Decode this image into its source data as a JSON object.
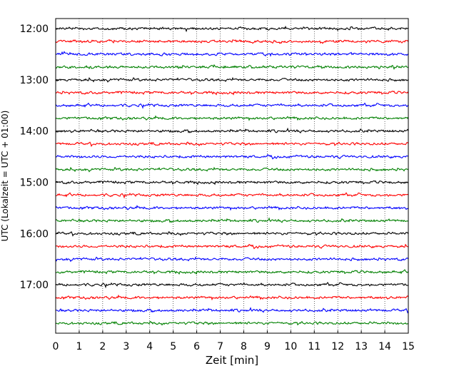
{
  "chart_data": {
    "type": "line",
    "title": "",
    "xlabel": "Zeit  [min]",
    "ylabel": "UTC (Lokalzeit = UTC + 01:00)",
    "xlim": [
      0,
      15
    ],
    "x_ticks": [
      0,
      1,
      2,
      3,
      4,
      5,
      6,
      7,
      8,
      9,
      10,
      11,
      12,
      13,
      14,
      15
    ],
    "y_tick_labels": [
      "12:00",
      "13:00",
      "14:00",
      "15:00",
      "16:00",
      "17:00"
    ],
    "y_range": [
      "11:45",
      "17:45"
    ],
    "grid": "vertical dotted lines at each minute",
    "legend": "none",
    "colors": [
      "#000000",
      "#ff0000",
      "#0000ff",
      "#008000"
    ],
    "traces": [
      {
        "start": "12:00",
        "color": "#000000"
      },
      {
        "start": "12:15",
        "color": "#ff0000"
      },
      {
        "start": "12:30",
        "color": "#0000ff"
      },
      {
        "start": "12:45",
        "color": "#008000"
      },
      {
        "start": "13:00",
        "color": "#000000"
      },
      {
        "start": "13:15",
        "color": "#ff0000"
      },
      {
        "start": "13:30",
        "color": "#0000ff"
      },
      {
        "start": "13:45",
        "color": "#008000"
      },
      {
        "start": "14:00",
        "color": "#000000"
      },
      {
        "start": "14:15",
        "color": "#ff0000"
      },
      {
        "start": "14:30",
        "color": "#0000ff"
      },
      {
        "start": "14:45",
        "color": "#008000"
      },
      {
        "start": "15:00",
        "color": "#000000"
      },
      {
        "start": "15:15",
        "color": "#ff0000"
      },
      {
        "start": "15:30",
        "color": "#0000ff"
      },
      {
        "start": "15:45",
        "color": "#008000"
      },
      {
        "start": "16:00",
        "color": "#000000"
      },
      {
        "start": "16:15",
        "color": "#ff0000"
      },
      {
        "start": "16:30",
        "color": "#0000ff"
      },
      {
        "start": "16:45",
        "color": "#008000"
      },
      {
        "start": "17:00",
        "color": "#000000"
      },
      {
        "start": "17:15",
        "color": "#ff0000"
      },
      {
        "start": "17:30",
        "color": "#0000ff"
      },
      {
        "start": "17:45",
        "color": "#008000"
      }
    ]
  }
}
